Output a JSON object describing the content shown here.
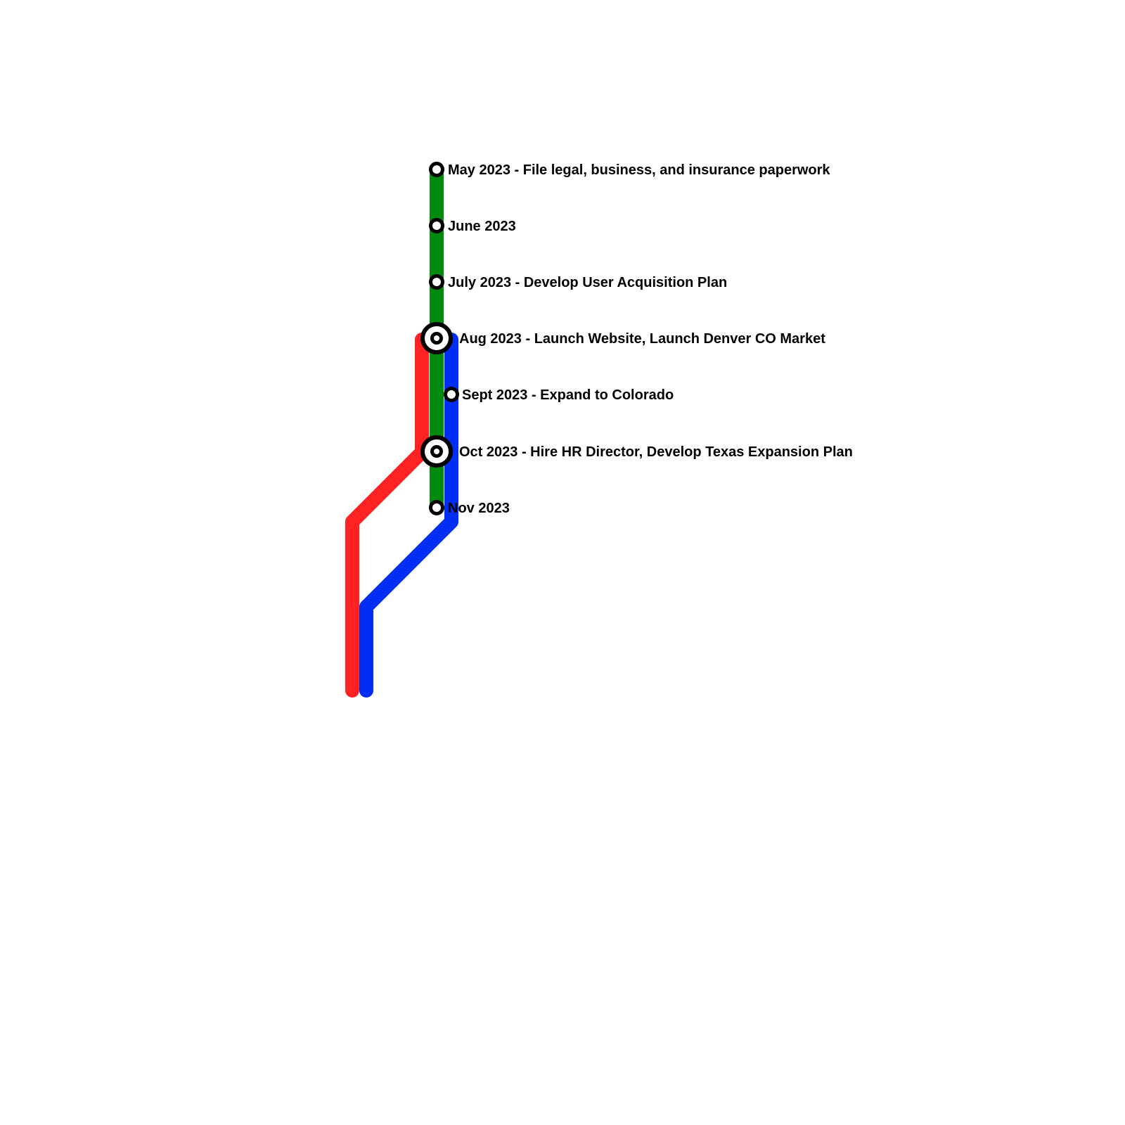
{
  "lines": [
    {
      "id": "green",
      "color": "#008a0e"
    },
    {
      "id": "red",
      "color": "#ff2222"
    },
    {
      "id": "blue",
      "color": "#002ef2"
    }
  ],
  "stops": [
    {
      "id": "may-2023",
      "label": "May 2023 - File legal, business, and insurance paperwork",
      "type": "station"
    },
    {
      "id": "june-2023",
      "label": "June 2023",
      "type": "station"
    },
    {
      "id": "july-2023",
      "label": "July 2023 - Develop User Acquisition Plan",
      "type": "station"
    },
    {
      "id": "aug-2023",
      "label": "Aug 2023 - Launch Website, Launch Denver CO Market",
      "type": "interchange"
    },
    {
      "id": "sept-2023",
      "label": "Sept 2023 - Expand to Colorado",
      "type": "station"
    },
    {
      "id": "oct-2023",
      "label": "Oct 2023 - Hire HR Director, Develop Texas Expansion Plan",
      "type": "interchange"
    },
    {
      "id": "nov-2023",
      "label": "Nov 2023",
      "type": "station"
    }
  ]
}
